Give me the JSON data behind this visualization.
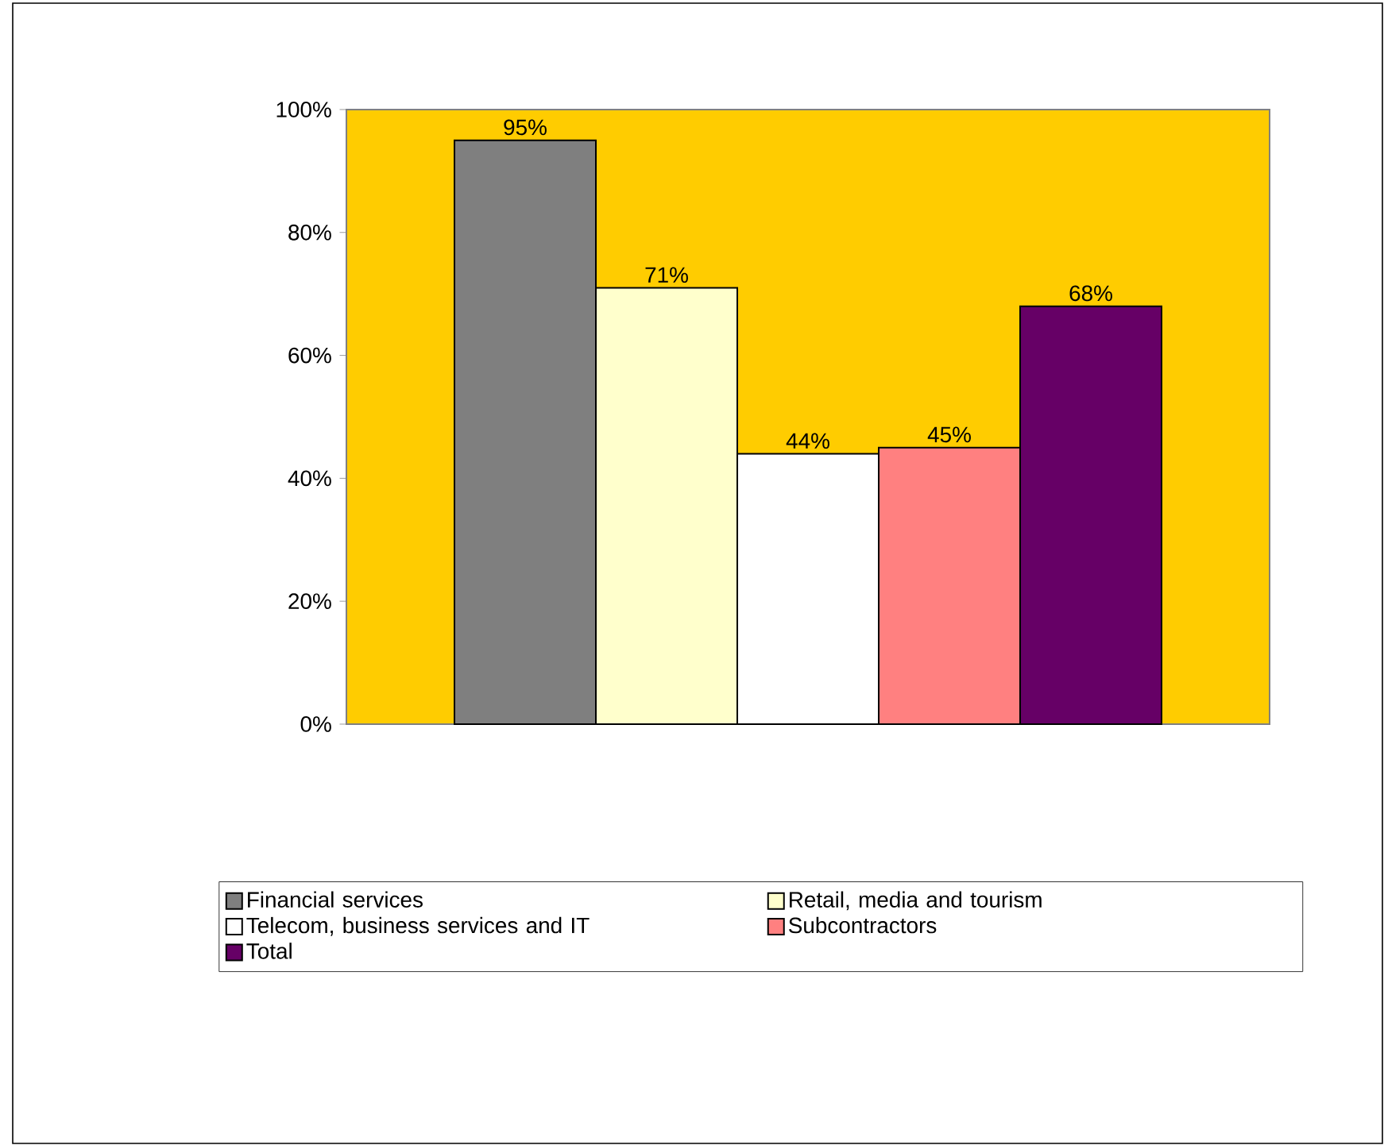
{
  "chart_data": {
    "type": "bar",
    "categories": [
      null
    ],
    "series": [
      {
        "name": "Financial services",
        "color": "#7f7f7f",
        "values": [
          95
        ],
        "value_labels": [
          "95%"
        ]
      },
      {
        "name": "Retail, media and tourism",
        "color": "#ffffcc",
        "values": [
          71
        ],
        "value_labels": [
          "71%"
        ]
      },
      {
        "name": "Telecom, business services and IT",
        "color": "#ffffff",
        "values": [
          44
        ],
        "value_labels": [
          "44%"
        ]
      },
      {
        "name": "Subcontractors",
        "color": "#ff8080",
        "values": [
          45
        ],
        "value_labels": [
          "45%"
        ]
      },
      {
        "name": "Total",
        "color": "#660066",
        "values": [
          68
        ],
        "value_labels": [
          "68%"
        ]
      }
    ],
    "ylim": [
      0,
      100
    ],
    "yticks": [
      {
        "value": 0,
        "label": "0%"
      },
      {
        "value": 20,
        "label": "20%"
      },
      {
        "value": 40,
        "label": "40%"
      },
      {
        "value": 60,
        "label": "60%"
      },
      {
        "value": 80,
        "label": "80%"
      },
      {
        "value": 100,
        "label": "100%"
      }
    ],
    "grid": false,
    "legend": "bottom"
  }
}
